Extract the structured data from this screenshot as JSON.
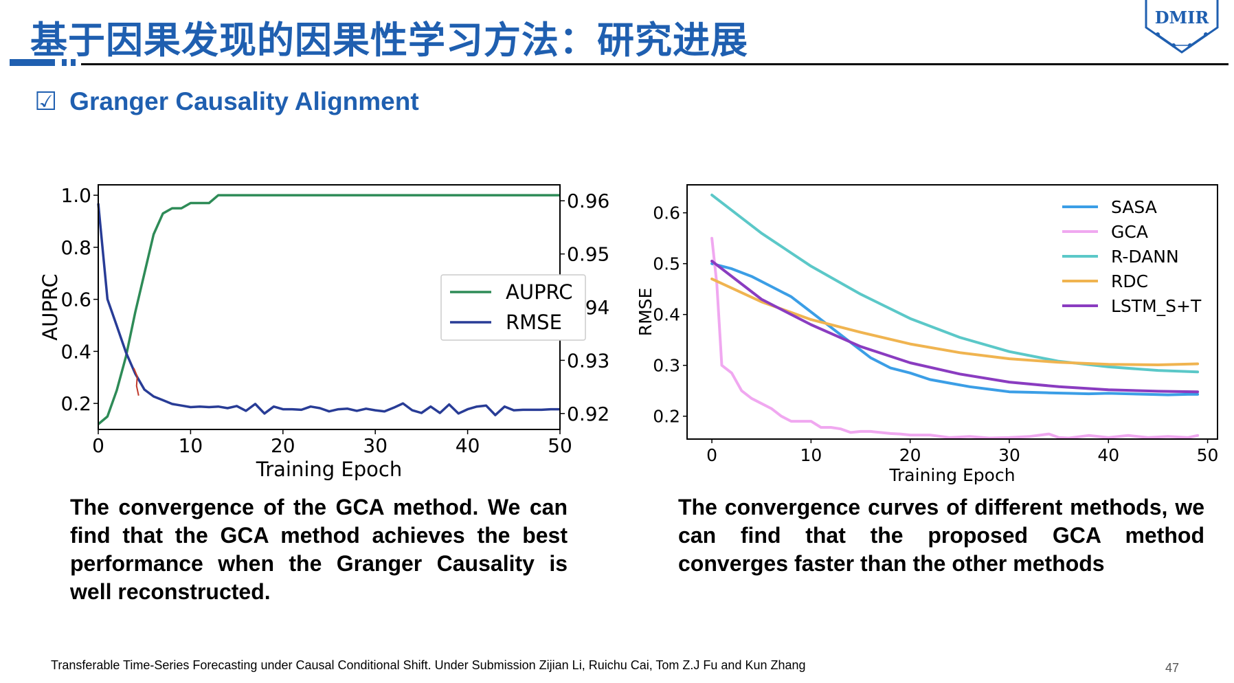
{
  "header": {
    "title": "基于因果发现的因果性学习方法：研究进展",
    "logo_text": "DMIR"
  },
  "section": {
    "checkbox_glyph": "☑",
    "heading": "Granger Causality Alignment"
  },
  "colors": {
    "title_blue": "#1f5fb0",
    "auprc": "#2e8b57",
    "rmse": "#283c96",
    "sasa": "#3b9ee6",
    "gca": "#f0a8f0",
    "rdann": "#5bc8c8",
    "rdc": "#f0b450",
    "lstm": "#8a3cc0"
  },
  "chart_data": [
    {
      "type": "line",
      "xlabel": "Training Epoch",
      "ylabel": "AUPRC",
      "y2label": "RMSE",
      "xlim": [
        0,
        50
      ],
      "ylim": [
        0.1,
        1.04
      ],
      "y2lim": [
        0.917,
        0.963
      ],
      "xticks": [
        "0",
        "10",
        "20",
        "30",
        "40",
        "50"
      ],
      "yticks": [
        "0.2",
        "0.4",
        "0.6",
        "0.8",
        "1.0"
      ],
      "y2ticks": [
        "0.92",
        "0.93",
        "0.94",
        "0.95",
        "0.96"
      ],
      "legend": "center-right",
      "series": [
        {
          "name": "AUPRC",
          "axis": "left",
          "x": [
            0,
            1,
            2,
            3,
            4,
            5,
            6,
            7,
            8,
            9,
            10,
            11,
            12,
            13,
            14,
            15,
            16,
            17,
            18,
            19,
            20,
            21,
            22,
            23,
            24,
            25,
            26,
            27,
            28,
            29,
            30,
            31,
            32,
            33,
            34,
            35,
            36,
            37,
            38,
            39,
            40,
            41,
            42,
            43,
            44,
            45,
            46,
            47,
            48,
            49,
            50
          ],
          "values": [
            0.12,
            0.15,
            0.25,
            0.38,
            0.55,
            0.7,
            0.85,
            0.93,
            0.95,
            0.95,
            0.97,
            0.97,
            0.97,
            1.0,
            1.0,
            1.0,
            1.0,
            1.0,
            1.0,
            1.0,
            1.0,
            1.0,
            1.0,
            1.0,
            1.0,
            1.0,
            1.0,
            1.0,
            1.0,
            1.0,
            1.0,
            1.0,
            1.0,
            1.0,
            1.0,
            1.0,
            1.0,
            1.0,
            1.0,
            1.0,
            1.0,
            1.0,
            1.0,
            1.0,
            1.0,
            1.0,
            1.0,
            1.0,
            1.0,
            1.0,
            1.0
          ]
        },
        {
          "name": "RMSE",
          "axis": "right",
          "x": [
            0,
            1,
            2,
            3,
            4,
            5,
            6,
            7,
            8,
            9,
            10,
            11,
            12,
            13,
            14,
            15,
            16,
            17,
            18,
            19,
            20,
            21,
            22,
            23,
            24,
            25,
            26,
            27,
            28,
            29,
            30,
            31,
            32,
            33,
            34,
            35,
            36,
            37,
            38,
            39,
            40,
            41,
            42,
            43,
            44,
            45,
            46,
            47,
            48,
            49,
            50
          ],
          "values": [
            0.9595,
            0.9415,
            0.9365,
            0.9315,
            0.9275,
            0.9245,
            0.9232,
            0.9225,
            0.9218,
            0.9215,
            0.9212,
            0.9213,
            0.9212,
            0.9213,
            0.921,
            0.9214,
            0.9205,
            0.9218,
            0.92,
            0.9213,
            0.9208,
            0.9208,
            0.9207,
            0.9213,
            0.921,
            0.9204,
            0.9208,
            0.9209,
            0.9205,
            0.9209,
            0.9206,
            0.9204,
            0.9211,
            0.9219,
            0.9206,
            0.9201,
            0.9213,
            0.9201,
            0.9217,
            0.92,
            0.9208,
            0.9213,
            0.9215,
            0.9197,
            0.9213,
            0.9206,
            0.9207,
            0.9207,
            0.9207,
            0.9208,
            0.9208
          ]
        }
      ]
    },
    {
      "type": "line",
      "xlabel": "Training Epoch",
      "ylabel": "RMSE",
      "xlim": [
        -2.5,
        51
      ],
      "ylim": [
        0.155,
        0.655
      ],
      "xticks": [
        "0",
        "10",
        "20",
        "30",
        "40",
        "50"
      ],
      "yticks": [
        "0.2",
        "0.3",
        "0.4",
        "0.5",
        "0.6"
      ],
      "legend": "top-right",
      "series": [
        {
          "name": "SASA",
          "x": [
            0,
            2,
            4,
            6,
            8,
            10,
            12,
            14,
            16,
            18,
            20,
            22,
            24,
            26,
            28,
            30,
            32,
            34,
            36,
            38,
            40,
            42,
            44,
            46,
            48,
            49
          ],
          "values": [
            0.5,
            0.49,
            0.475,
            0.455,
            0.435,
            0.405,
            0.375,
            0.345,
            0.315,
            0.295,
            0.285,
            0.272,
            0.265,
            0.258,
            0.253,
            0.248,
            0.247,
            0.246,
            0.245,
            0.244,
            0.245,
            0.244,
            0.243,
            0.242,
            0.243,
            0.243
          ]
        },
        {
          "name": "GCA",
          "x": [
            0,
            0.5,
            1,
            2,
            3,
            4,
            5,
            6,
            7,
            8,
            9,
            10,
            11,
            12,
            13,
            14,
            15,
            16,
            17,
            18,
            19,
            20,
            22,
            24,
            26,
            28,
            30,
            32,
            34,
            35,
            36,
            38,
            40,
            42,
            44,
            46,
            48,
            49
          ],
          "values": [
            0.55,
            0.46,
            0.3,
            0.285,
            0.25,
            0.235,
            0.225,
            0.215,
            0.2,
            0.19,
            0.19,
            0.19,
            0.178,
            0.178,
            0.175,
            0.168,
            0.17,
            0.17,
            0.168,
            0.166,
            0.165,
            0.163,
            0.163,
            0.158,
            0.16,
            0.157,
            0.158,
            0.16,
            0.165,
            0.158,
            0.157,
            0.162,
            0.158,
            0.162,
            0.158,
            0.16,
            0.158,
            0.162
          ]
        },
        {
          "name": "R-DANN",
          "x": [
            0,
            5,
            10,
            15,
            20,
            25,
            30,
            35,
            40,
            45,
            49
          ],
          "values": [
            0.635,
            0.56,
            0.495,
            0.44,
            0.392,
            0.355,
            0.327,
            0.308,
            0.297,
            0.29,
            0.287
          ]
        },
        {
          "name": "RDC",
          "x": [
            0,
            5,
            10,
            15,
            20,
            25,
            30,
            35,
            40,
            45,
            49
          ],
          "values": [
            0.47,
            0.425,
            0.39,
            0.365,
            0.342,
            0.325,
            0.313,
            0.306,
            0.302,
            0.301,
            0.303
          ]
        },
        {
          "name": "LSTM_S+T",
          "x": [
            0,
            5,
            10,
            15,
            20,
            25,
            30,
            35,
            40,
            45,
            49
          ],
          "values": [
            0.505,
            0.43,
            0.38,
            0.337,
            0.305,
            0.283,
            0.267,
            0.258,
            0.252,
            0.249,
            0.248
          ]
        }
      ]
    }
  ],
  "captions": {
    "left": "The convergence of the GCA method. We can find that the GCA method achieves the best performance when the Granger Causality is well reconstructed.",
    "right": "The convergence curves of different methods, we can find that the proposed GCA method converges faster than the other methods"
  },
  "footer": {
    "reference": "Transferable Time-Series Forecasting under Causal Conditional Shift. Under Submission Zijian Li, Ruichu Cai, Tom Z.J Fu and Kun Zhang",
    "page_number": "47"
  }
}
